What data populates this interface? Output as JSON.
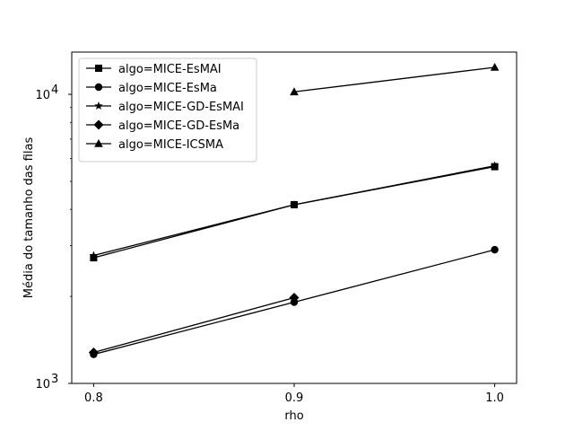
{
  "chart_data": {
    "type": "line",
    "title": "",
    "xlabel": "rho",
    "ylabel": "Média do tamanho das filas",
    "x": [
      0.8,
      0.9,
      1.0
    ],
    "x_ticks": [
      0.8,
      0.9,
      1.0
    ],
    "x_tick_labels": [
      "0.8",
      "0.9",
      "1.0"
    ],
    "xlim": [
      0.78909,
      1.01091
    ],
    "yscale": "log",
    "ylim": [
      1000,
      14000
    ],
    "y_ticks": [
      1000,
      10000
    ],
    "y_tick_labels": [
      {
        "base": "10",
        "exp": "3"
      },
      {
        "base": "10",
        "exp": "4"
      }
    ],
    "grid": false,
    "legend_position": "upper-left",
    "line_color": "#000000",
    "series": [
      {
        "name": "algo=MICE-EsMAI",
        "marker": "square",
        "values": [
          2720,
          4150,
          5620
        ]
      },
      {
        "name": "algo=MICE-EsMa",
        "marker": "circle",
        "values": [
          1260,
          1910,
          2900
        ]
      },
      {
        "name": "algo=MICE-GD-EsMAI",
        "marker": "star",
        "values": [
          2770,
          4150,
          5660
        ]
      },
      {
        "name": "algo=MICE-GD-EsMa",
        "marker": "diamond",
        "values": [
          1280,
          1980,
          null
        ]
      },
      {
        "name": "algo=MICE-ICSMA",
        "marker": "triangle",
        "values": [
          null,
          10200,
          12400
        ]
      }
    ]
  }
}
